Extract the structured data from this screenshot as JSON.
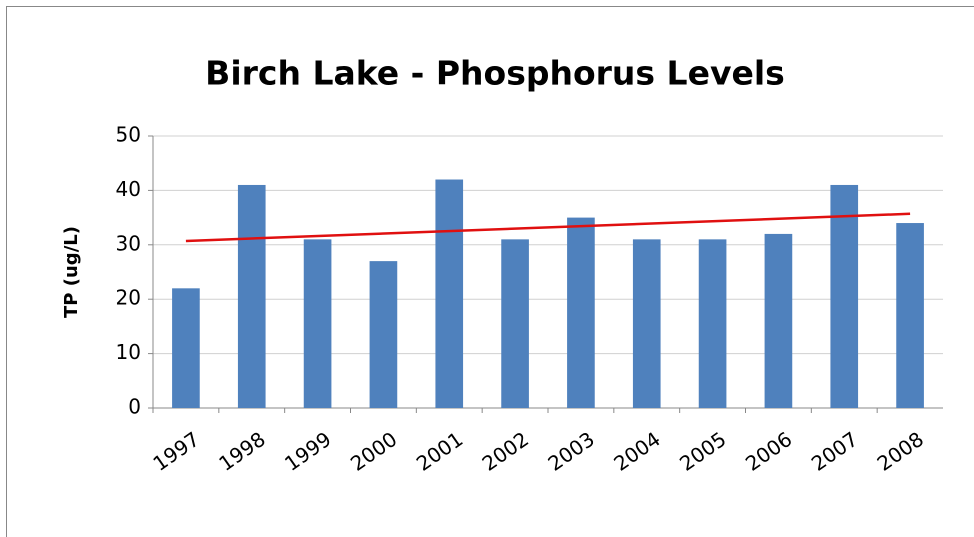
{
  "chart_data": {
    "type": "bar",
    "title": "Birch Lake - Phosphorus Levels",
    "y_label": "TP (ug/L)",
    "categories": [
      "1997",
      "1998",
      "1999",
      "2000",
      "2001",
      "2002",
      "2003",
      "2004",
      "2005",
      "2006",
      "2007",
      "2008"
    ],
    "values": [
      22,
      41,
      31,
      27,
      42,
      31,
      35,
      31,
      31,
      32,
      41,
      34
    ],
    "color": "#4f81bd",
    "trendline": {
      "color": "#e01010",
      "values": [
        30.7,
        35.7
      ]
    },
    "ylim": [
      0,
      50
    ],
    "yticks": [
      0,
      10,
      20,
      30,
      40,
      50
    ],
    "grid": true
  }
}
